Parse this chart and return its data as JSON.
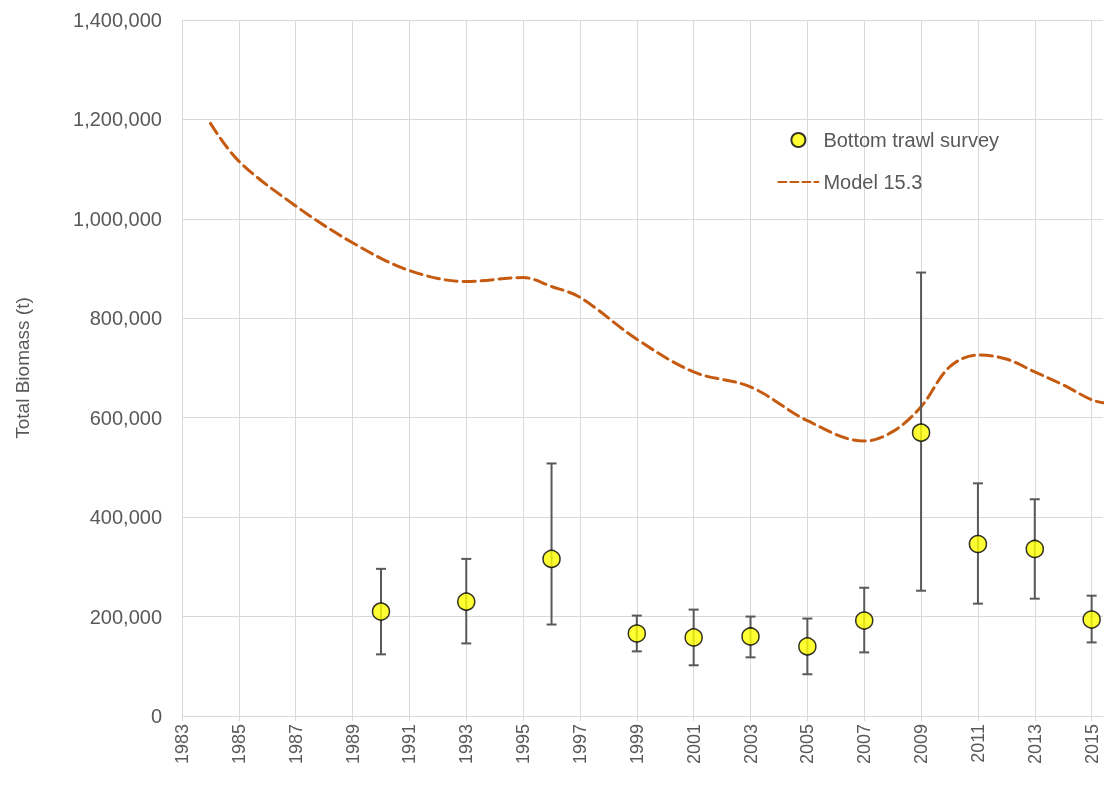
{
  "chart_data": {
    "type": "scatter",
    "ylabel": "Total Biomass (t)",
    "series": [
      {
        "name": "Bottom trawl survey",
        "color": "#ffff00",
        "marker": "circle",
        "x": [
          1990,
          1993,
          1996,
          1999,
          2001,
          2003,
          2005,
          2007,
          2009,
          2011,
          2013,
          2015
        ],
        "values": [
          210000,
          230000,
          316000,
          166000,
          158000,
          160000,
          140000,
          192000,
          570000,
          346000,
          336000,
          194000
        ],
        "errors": [
          [
            124000,
            296000
          ],
          [
            146000,
            316000
          ],
          [
            184000,
            508000
          ],
          [
            130000,
            202000
          ],
          [
            102000,
            214000
          ],
          [
            118000,
            200000
          ],
          [
            84000,
            196000
          ],
          [
            128000,
            258000
          ],
          [
            252000,
            892000
          ],
          [
            226000,
            468000
          ],
          [
            236000,
            436000
          ],
          [
            148000,
            242000
          ]
        ]
      },
      {
        "name": "Model 15.3",
        "type": "line",
        "color": "#c55a11",
        "marker": "none",
        "line_style": "dashed",
        "x": [
          1984,
          1985,
          1987,
          1989,
          1991,
          1993,
          1995,
          1996,
          1997,
          1999,
          2001,
          2003,
          2005,
          2007,
          2008,
          2009,
          2010,
          2011,
          2012,
          2013,
          2014,
          2015,
          2015.4
        ],
        "values": [
          1192000,
          1116000,
          1026000,
          952000,
          896000,
          874000,
          882000,
          864000,
          842000,
          758000,
          692000,
          662000,
          594000,
          553000,
          572000,
          622000,
          702000,
          726000,
          718000,
          692000,
          666000,
          636000,
          630000
        ]
      }
    ],
    "xlim": [
      1983,
      2015.4
    ],
    "xticks": [
      1983,
      1985,
      1987,
      1989,
      1991,
      1993,
      1995,
      1997,
      1999,
      2001,
      2003,
      2005,
      2007,
      2009,
      2011,
      2013,
      2015
    ],
    "ylim": [
      0,
      1400000
    ],
    "yticks": [
      {
        "value": 0,
        "label": "0"
      },
      {
        "value": 200000,
        "label": "200,000"
      },
      {
        "value": 400000,
        "label": "400,000"
      },
      {
        "value": 600000,
        "label": "600,000"
      },
      {
        "value": 800000,
        "label": "800,000"
      },
      {
        "value": 1000000,
        "label": "1,000,000"
      },
      {
        "value": 1200000,
        "label": "1,200,000"
      },
      {
        "value": 1400000,
        "label": "1,400,000"
      }
    ],
    "grid": true,
    "legend": "top right"
  }
}
